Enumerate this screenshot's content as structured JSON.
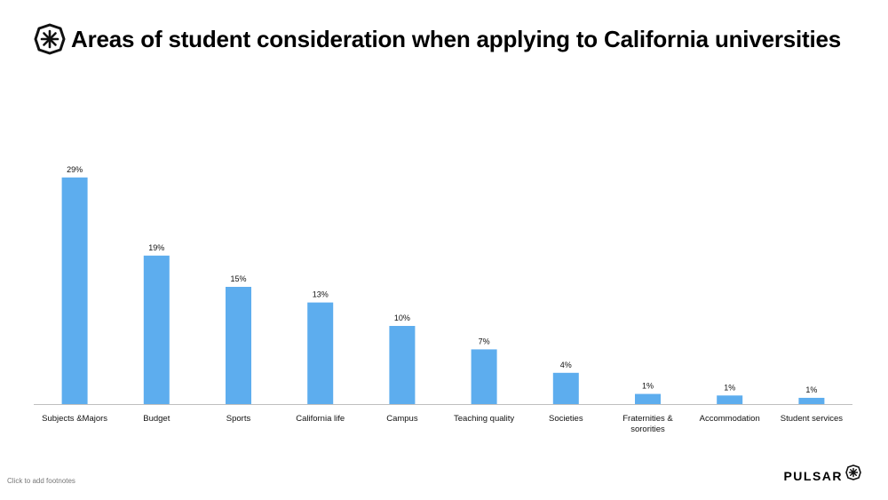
{
  "header": {
    "title": "Areas of student consideration when applying to California universities"
  },
  "footer": {
    "footnote": "Click to add footnotes",
    "brand": "PULSAR"
  },
  "colors": {
    "bar": "#5DADEE",
    "axis": "#BFBFBF"
  },
  "chart_data": {
    "type": "bar",
    "title": "Areas of student consideration when applying to California universities",
    "xlabel": "",
    "ylabel": "",
    "grid": false,
    "categories": [
      [
        "Subjects &Majors"
      ],
      [
        "Budget"
      ],
      [
        "Sports"
      ],
      [
        "California life"
      ],
      [
        "Campus"
      ],
      [
        "Teaching quality"
      ],
      [
        "Societies"
      ],
      [
        "Fraternities &",
        "sororities"
      ],
      [
        "Accommodation"
      ],
      [
        "Student services"
      ]
    ],
    "values": [
      29,
      19,
      15,
      13,
      10,
      7,
      4,
      1.3,
      1.1,
      0.8
    ],
    "value_labels": [
      "29%",
      "19%",
      "15%",
      "13%",
      "10%",
      "7%",
      "4%",
      "1%",
      "1%",
      "1%"
    ],
    "ylim": [
      0,
      30
    ]
  }
}
